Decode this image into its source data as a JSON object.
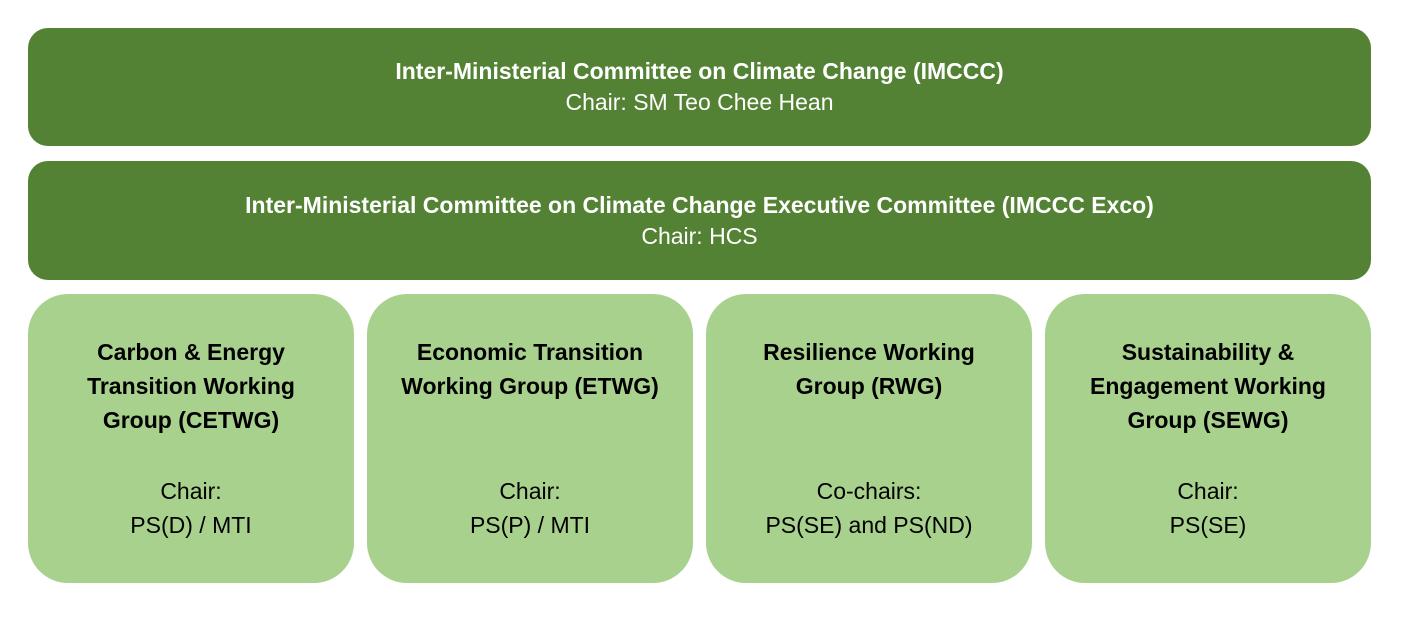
{
  "imccc": {
    "title": "Inter-Ministerial Committee on Climate Change (IMCCC)",
    "chair": "Chair: SM Teo Chee Hean"
  },
  "exco": {
    "title": "Inter-Ministerial Committee on Climate Change Executive Committee (IMCCC Exco)",
    "chair": "Chair: HCS"
  },
  "groups": [
    {
      "name": "Carbon & Energy Transition Working Group (CETWG)",
      "chair_label": "Chair:",
      "chair_value": "PS(D) / MTI"
    },
    {
      "name": "Economic Transition Working Group (ETWG)",
      "chair_label": "Chair:",
      "chair_value": "PS(P) / MTI"
    },
    {
      "name": "Resilience Working Group (RWG)",
      "chair_label": "Co-chairs:",
      "chair_value": "PS(SE) and PS(ND)"
    },
    {
      "name": "Sustainability & Engagement Working Group (SEWG)",
      "chair_label": "Chair:",
      "chair_value": "PS(SE)"
    }
  ],
  "colors": {
    "committee_band": "#548235",
    "working_group_box": "#a9d18e"
  }
}
